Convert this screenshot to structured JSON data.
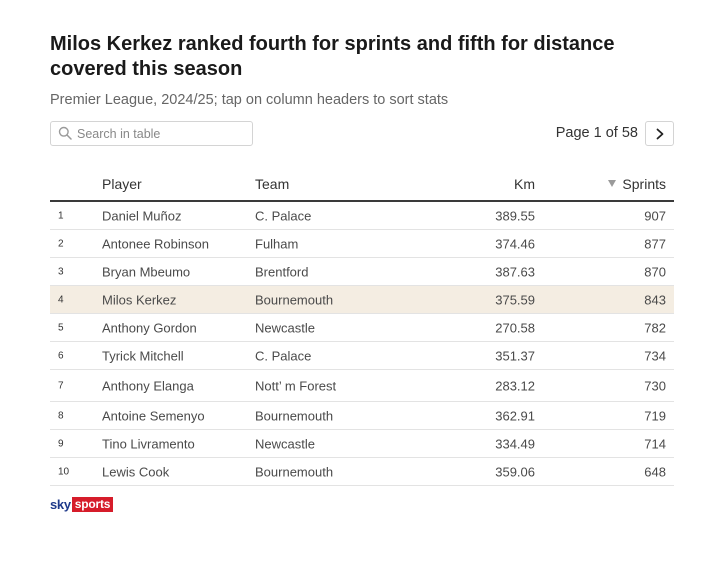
{
  "header": {
    "title": "Milos Kerkez ranked fourth for sprints and fifth for distance covered this season",
    "subtitle": "Premier League, 2024/25; tap on column headers to sort stats"
  },
  "search": {
    "placeholder": "Search in table",
    "value": "",
    "icon": "search-icon"
  },
  "pager": {
    "label": "Page 1 of 58",
    "next_icon": "chevron-right-icon"
  },
  "chart_data": {
    "type": "table",
    "columns": [
      "",
      "Player",
      "Team",
      "Km",
      "Sprints"
    ],
    "sorted_column": "Sprints",
    "sort_direction": "descending",
    "highlighted_row": 3,
    "rows": [
      {
        "rank": "1",
        "player": "Daniel Muñoz",
        "team": "C. Palace",
        "km": "389.55",
        "sprints": "907"
      },
      {
        "rank": "2",
        "player": "Antonee Robinson",
        "team": "Fulham",
        "km": "374.46",
        "sprints": "877"
      },
      {
        "rank": "3",
        "player": "Bryan Mbeumo",
        "team": "Brentford",
        "km": "387.63",
        "sprints": "870"
      },
      {
        "rank": "4",
        "player": "Milos Kerkez",
        "team": "Bournemouth",
        "km": "375.59",
        "sprints": "843"
      },
      {
        "rank": "5",
        "player": "Anthony Gordon",
        "team": "Newcastle",
        "km": "270.58",
        "sprints": "782"
      },
      {
        "rank": "6",
        "player": "Tyrick Mitchell",
        "team": "C. Palace",
        "km": "351.37",
        "sprints": "734"
      },
      {
        "rank": "7",
        "player": "Anthony Elanga",
        "team": "Nott’ m Forest",
        "km": "283.12",
        "sprints": "730"
      },
      {
        "rank": "8",
        "player": "Antoine Semenyo",
        "team": "Bournemouth",
        "km": "362.91",
        "sprints": "719"
      },
      {
        "rank": "9",
        "player": "Tino Livramento",
        "team": "Newcastle",
        "km": "334.49",
        "sprints": "714"
      },
      {
        "rank": "10",
        "player": "Lewis Cook",
        "team": "Bournemouth",
        "km": "359.06",
        "sprints": "648"
      }
    ]
  },
  "footer": {
    "logo_sky": "sky",
    "logo_sports": "sports"
  },
  "colors": {
    "highlight_row": "#f4ede2",
    "header_rule": "#3a3a3a",
    "logo_red": "#d61c2a",
    "logo_blue": "#1f3a8a"
  }
}
